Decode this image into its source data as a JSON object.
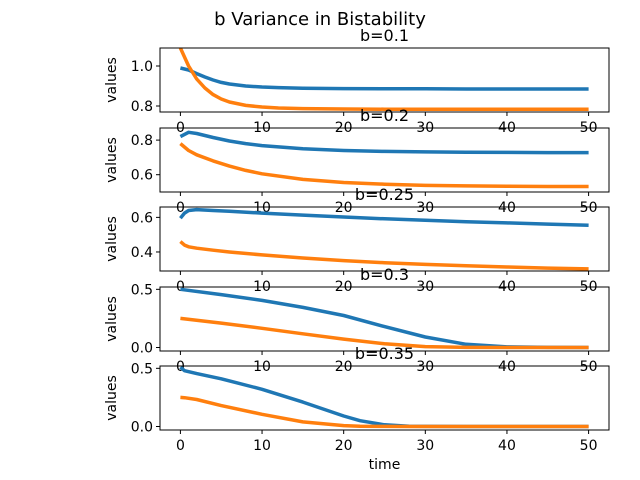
{
  "figure": {
    "title": "b Variance in Bistability",
    "colors": {
      "series_a": "#1f77b4",
      "series_b": "#ff7f0e"
    }
  },
  "chart_data": [
    {
      "type": "line",
      "title": "b=0.1",
      "xlabel": "",
      "ylabel": "values",
      "xlim": [
        -2.5,
        52.5
      ],
      "ylim": [
        0.77,
        1.09
      ],
      "xticks": [
        0,
        10,
        20,
        30,
        40,
        50
      ],
      "yticks": [
        0.8,
        1.0
      ],
      "ytick_labels": [
        "0.8",
        "1.0"
      ],
      "x": [
        0,
        1,
        2,
        3,
        4,
        5,
        6,
        8,
        10,
        12,
        15,
        20,
        25,
        30,
        35,
        40,
        45,
        50
      ],
      "series": [
        {
          "values": [
            0.99,
            0.98,
            0.962,
            0.945,
            0.93,
            0.918,
            0.91,
            0.9,
            0.895,
            0.892,
            0.889,
            0.887,
            0.886,
            0.886,
            0.885,
            0.885,
            0.885,
            0.885
          ]
        },
        {
          "values": [
            1.09,
            1.0,
            0.935,
            0.89,
            0.857,
            0.835,
            0.82,
            0.803,
            0.795,
            0.79,
            0.787,
            0.785,
            0.784,
            0.784,
            0.784,
            0.784,
            0.784,
            0.784
          ]
        }
      ]
    },
    {
      "type": "line",
      "title": "b=0.2",
      "xlabel": "",
      "ylabel": "values",
      "xlim": [
        -2.5,
        52.5
      ],
      "ylim": [
        0.5,
        0.87
      ],
      "xticks": [
        0,
        10,
        20,
        30,
        40,
        50
      ],
      "yticks": [
        0.6,
        0.8
      ],
      "ytick_labels": [
        "0.6",
        "0.8"
      ],
      "x": [
        0,
        1,
        2,
        4,
        6,
        8,
        10,
        15,
        20,
        25,
        30,
        35,
        40,
        45,
        50
      ],
      "series": [
        {
          "values": [
            0.82,
            0.845,
            0.838,
            0.815,
            0.795,
            0.78,
            0.768,
            0.75,
            0.74,
            0.735,
            0.732,
            0.73,
            0.729,
            0.728,
            0.728
          ]
        },
        {
          "values": [
            0.78,
            0.74,
            0.715,
            0.68,
            0.65,
            0.625,
            0.605,
            0.573,
            0.555,
            0.545,
            0.538,
            0.535,
            0.533,
            0.532,
            0.532
          ]
        }
      ]
    },
    {
      "type": "line",
      "title": "b=0.25",
      "xlabel": "",
      "ylabel": "values",
      "xlim": [
        -2.5,
        52.5
      ],
      "ylim": [
        0.29,
        0.66
      ],
      "xticks": [
        0,
        10,
        20,
        30,
        40,
        50
      ],
      "yticks": [
        0.4,
        0.6
      ],
      "ytick_labels": [
        "0.4",
        "0.6"
      ],
      "x": [
        0,
        0.5,
        1,
        2,
        4,
        6,
        10,
        15,
        20,
        25,
        30,
        35,
        40,
        45,
        50
      ],
      "series": [
        {
          "values": [
            0.595,
            0.625,
            0.64,
            0.645,
            0.64,
            0.635,
            0.625,
            0.613,
            0.602,
            0.592,
            0.583,
            0.575,
            0.568,
            0.561,
            0.555
          ]
        },
        {
          "values": [
            0.46,
            0.44,
            0.43,
            0.422,
            0.41,
            0.4,
            0.383,
            0.365,
            0.35,
            0.338,
            0.328,
            0.32,
            0.313,
            0.307,
            0.302
          ]
        }
      ]
    },
    {
      "type": "line",
      "title": "b=0.3",
      "xlabel": "",
      "ylabel": "values",
      "xlim": [
        -2.5,
        52.5
      ],
      "ylim": [
        -0.03,
        0.52
      ],
      "xticks": [
        0,
        10,
        20,
        30,
        40,
        50
      ],
      "yticks": [
        0.0,
        0.5
      ],
      "ytick_labels": [
        "0.0",
        "0.5"
      ],
      "x": [
        0,
        5,
        10,
        15,
        20,
        25,
        30,
        35,
        40,
        45,
        50
      ],
      "series": [
        {
          "values": [
            0.5,
            0.455,
            0.405,
            0.345,
            0.275,
            0.18,
            0.09,
            0.028,
            0.005,
            0.001,
            0.0
          ]
        },
        {
          "values": [
            0.25,
            0.21,
            0.165,
            0.118,
            0.072,
            0.032,
            0.008,
            0.001,
            0.0,
            0.0,
            0.0
          ]
        }
      ]
    },
    {
      "type": "line",
      "title": "b=0.35",
      "xlabel": "time",
      "ylabel": "values",
      "xlim": [
        -2.5,
        52.5
      ],
      "ylim": [
        -0.03,
        0.52
      ],
      "xticks": [
        0,
        10,
        20,
        30,
        40,
        50
      ],
      "yticks": [
        0.0,
        0.5
      ],
      "ytick_labels": [
        "0.0",
        "0.5"
      ],
      "x": [
        0,
        0.5,
        2,
        5,
        10,
        15,
        20,
        22,
        25,
        28,
        30,
        35,
        40,
        45,
        50
      ],
      "series": [
        {
          "values": [
            0.51,
            0.48,
            0.455,
            0.41,
            0.32,
            0.21,
            0.09,
            0.05,
            0.015,
            0.003,
            0.001,
            0.0,
            0.0,
            0.0,
            0.0
          ]
        },
        {
          "values": [
            0.25,
            0.248,
            0.232,
            0.18,
            0.105,
            0.04,
            0.008,
            0.003,
            0.001,
            0.0,
            0.0,
            0.0,
            0.0,
            0.0,
            0.0
          ]
        }
      ]
    }
  ]
}
